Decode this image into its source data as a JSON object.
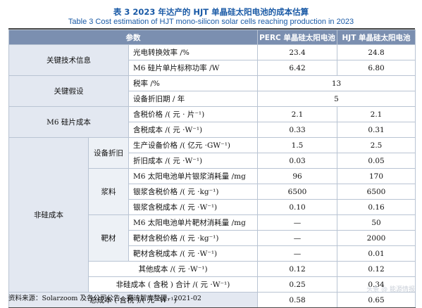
{
  "title_cn": "表 3  2023 年达产的 HJT 单晶硅太阳电池的成本估算",
  "title_en": "Table 3   Cost estimation of HJT mono-silicon solar cells reaching production in 2023",
  "headers": {
    "param": "参数",
    "perc": "PERC 单晶硅太阳电池",
    "hjt": "HJT 单晶硅太阳电池"
  },
  "groups": {
    "key_tech": "关键技术信息",
    "key_assume": "关键假设",
    "m6_cost": "M6 硅片成本",
    "non_si": "非硅成本",
    "equip_dep": "设备折旧",
    "paste": "浆料",
    "target": "靶材"
  },
  "rows": {
    "efficiency": {
      "label": "光电转换效率 /%",
      "perc": "23.4",
      "hjt": "24.8"
    },
    "power": {
      "label": "M6 硅片单片标称功率 /W",
      "perc": "6.42",
      "hjt": "6.80"
    },
    "tax": {
      "label": "税率 /%",
      "value": "13"
    },
    "dep_years": {
      "label": "设备折旧期 / 年",
      "value": "5"
    },
    "wafer_price": {
      "label": "含税价格 /( 元 · 片⁻¹)",
      "perc": "2.1",
      "hjt": "2.1"
    },
    "wafer_cost": {
      "label": "含税成本 /( 元 ·W⁻¹)",
      "perc": "0.33",
      "hjt": "0.31"
    },
    "equip_cost": {
      "label": "生产设备价格 /( 亿元 ·GW⁻¹)",
      "perc": "1.5",
      "hjt": "2.5"
    },
    "dep_cost": {
      "label": "折旧成本 /( 元 ·W⁻¹)",
      "perc": "0.03",
      "hjt": "0.05"
    },
    "paste_use": {
      "label": "M6 太阳电池单片银浆消耗量 /mg",
      "perc": "96",
      "hjt": "170"
    },
    "paste_price": {
      "label": "银浆含税价格 /( 元 ·kg⁻¹)",
      "perc": "6500",
      "hjt": "6500"
    },
    "paste_cost": {
      "label": "银浆含税成本 /( 元 ·W⁻¹)",
      "perc": "0.10",
      "hjt": "0.16"
    },
    "target_use": {
      "label": "M6 太阳电池单片靶材消耗量 /mg",
      "perc": "—",
      "hjt": "50"
    },
    "target_price": {
      "label": "靶材含税价格 /( 元 ·kg⁻¹)",
      "perc": "—",
      "hjt": "2000"
    },
    "target_cost": {
      "label": "靶材含税成本 /( 元 ·W⁻¹)",
      "perc": "—",
      "hjt": "0.01"
    },
    "other_cost": {
      "label": "其他成本 /( 元 ·W⁻¹)",
      "perc": "0.12",
      "hjt": "0.12"
    },
    "non_si_total": {
      "label": "非硅成本 ( 含税 ) 合计 /( 元 ·W⁻¹)",
      "perc": "0.25",
      "hjt": "0.34"
    },
    "total": {
      "label": "总成本 ( 含税 )/( 元 ·W⁻¹)",
      "perc": "0.58",
      "hjt": "0.65"
    }
  },
  "source": "资料来源：Solarzoom 及各公司公告，赛迪智库整理，2021-02",
  "watermark": "头条 @ 能源情报"
}
